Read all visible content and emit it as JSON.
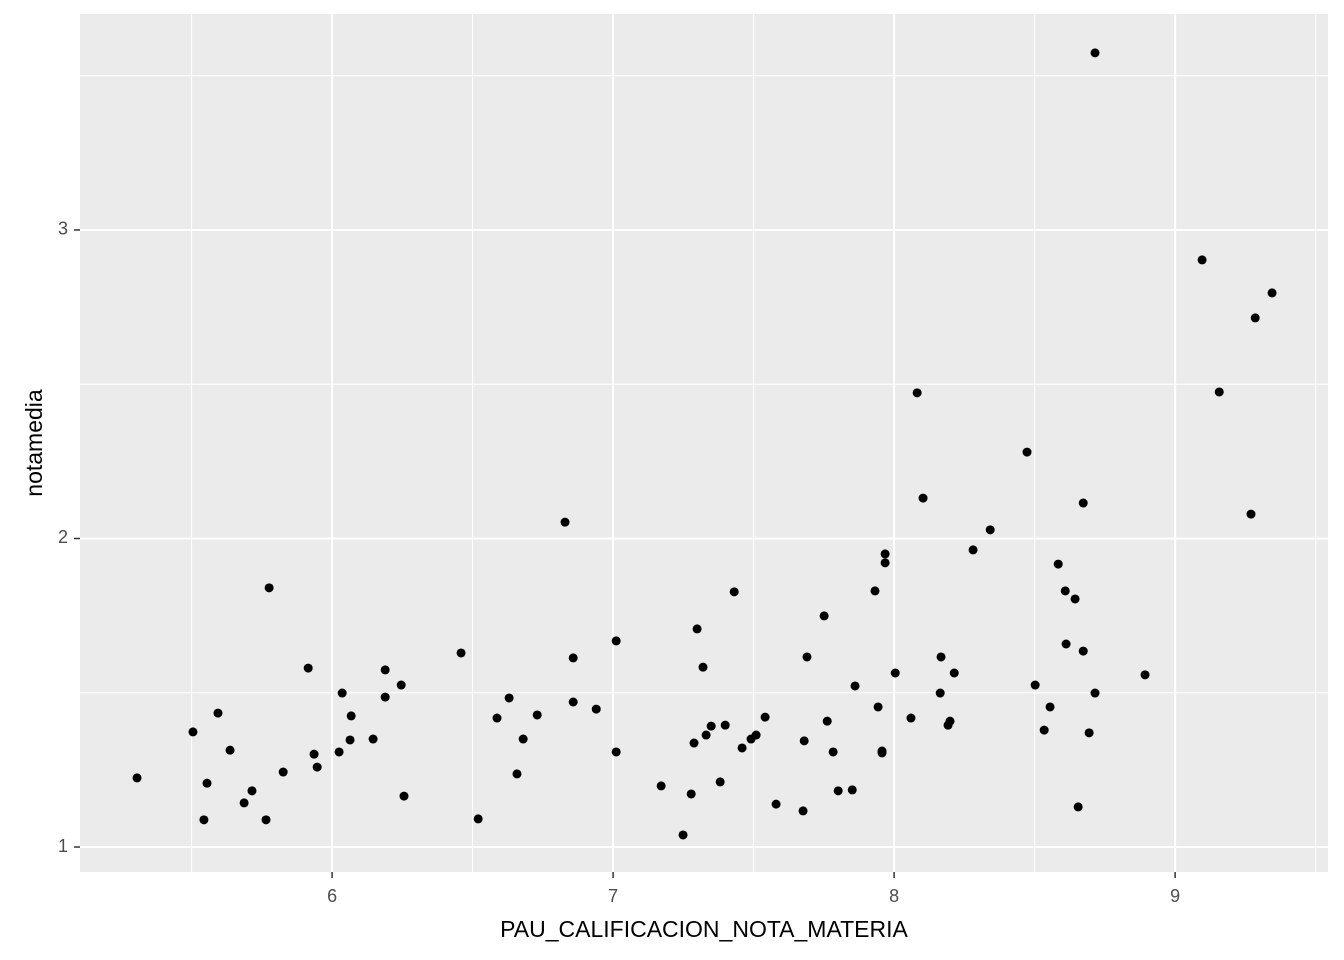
{
  "chart_data": {
    "type": "scatter",
    "x_label": "PAU_CALIFICACION_NOTA_MATERIA",
    "y_label": "notamedia",
    "color": "#000000",
    "grid": true,
    "xlim": [
      5.103,
      9.544
    ],
    "ylim": [
      0.919,
      3.7
    ],
    "xticks": [
      6,
      7,
      8,
      9
    ],
    "yticks": [
      1,
      2,
      3
    ],
    "x": [
      5.306,
      5.505,
      5.544,
      5.555,
      5.594,
      5.637,
      5.687,
      5.715,
      5.765,
      5.776,
      5.826,
      5.915,
      5.936,
      5.947,
      6.025,
      6.036,
      6.064,
      6.068,
      6.146,
      6.189,
      6.189,
      6.246,
      6.256,
      6.459,
      6.52,
      6.587,
      6.63,
      6.658,
      6.68,
      6.73,
      6.829,
      6.858,
      6.858,
      6.94,
      7.011,
      7.011,
      7.171,
      7.249,
      7.278,
      7.288,
      7.299,
      7.32,
      7.331,
      7.349,
      7.381,
      7.399,
      7.431,
      7.459,
      7.491,
      7.509,
      7.541,
      7.58,
      7.676,
      7.68,
      7.69,
      7.751,
      7.762,
      7.783,
      7.801,
      7.851,
      7.861,
      7.932,
      7.943,
      7.957,
      7.957,
      7.968,
      7.968,
      8.004,
      8.06,
      8.082,
      8.103,
      8.167,
      8.164,
      8.192,
      8.199,
      8.214,
      8.281,
      8.342,
      8.473,
      8.502,
      8.534,
      8.555,
      8.584,
      8.609,
      8.612,
      8.644,
      8.655,
      8.673,
      8.673,
      8.694,
      8.715,
      8.715,
      8.893,
      9.096,
      9.157,
      9.27,
      9.285,
      9.345
    ],
    "values": [
      1.224,
      1.373,
      1.088,
      1.207,
      1.434,
      1.314,
      1.143,
      1.182,
      1.088,
      1.84,
      1.243,
      1.58,
      1.301,
      1.259,
      1.308,
      1.499,
      1.347,
      1.425,
      1.35,
      1.574,
      1.486,
      1.525,
      1.165,
      1.629,
      1.091,
      1.418,
      1.483,
      1.237,
      1.35,
      1.428,
      2.053,
      1.613,
      1.47,
      1.447,
      1.668,
      1.308,
      1.198,
      1.039,
      1.172,
      1.337,
      1.707,
      1.583,
      1.363,
      1.392,
      1.211,
      1.395,
      1.827,
      1.321,
      1.35,
      1.363,
      1.421,
      1.139,
      1.117,
      1.344,
      1.616,
      1.749,
      1.408,
      1.308,
      1.182,
      1.185,
      1.522,
      1.83,
      1.454,
      1.311,
      1.305,
      1.95,
      1.921,
      1.564,
      1.418,
      2.472,
      2.131,
      1.616,
      1.499,
      1.395,
      1.408,
      1.564,
      1.963,
      2.028,
      2.28,
      1.525,
      1.379,
      1.454,
      1.917,
      1.83,
      1.658,
      1.804,
      1.13,
      1.635,
      2.115,
      1.37,
      1.499,
      3.574,
      1.558,
      2.903,
      2.475,
      2.079,
      2.715,
      2.796
    ]
  }
}
